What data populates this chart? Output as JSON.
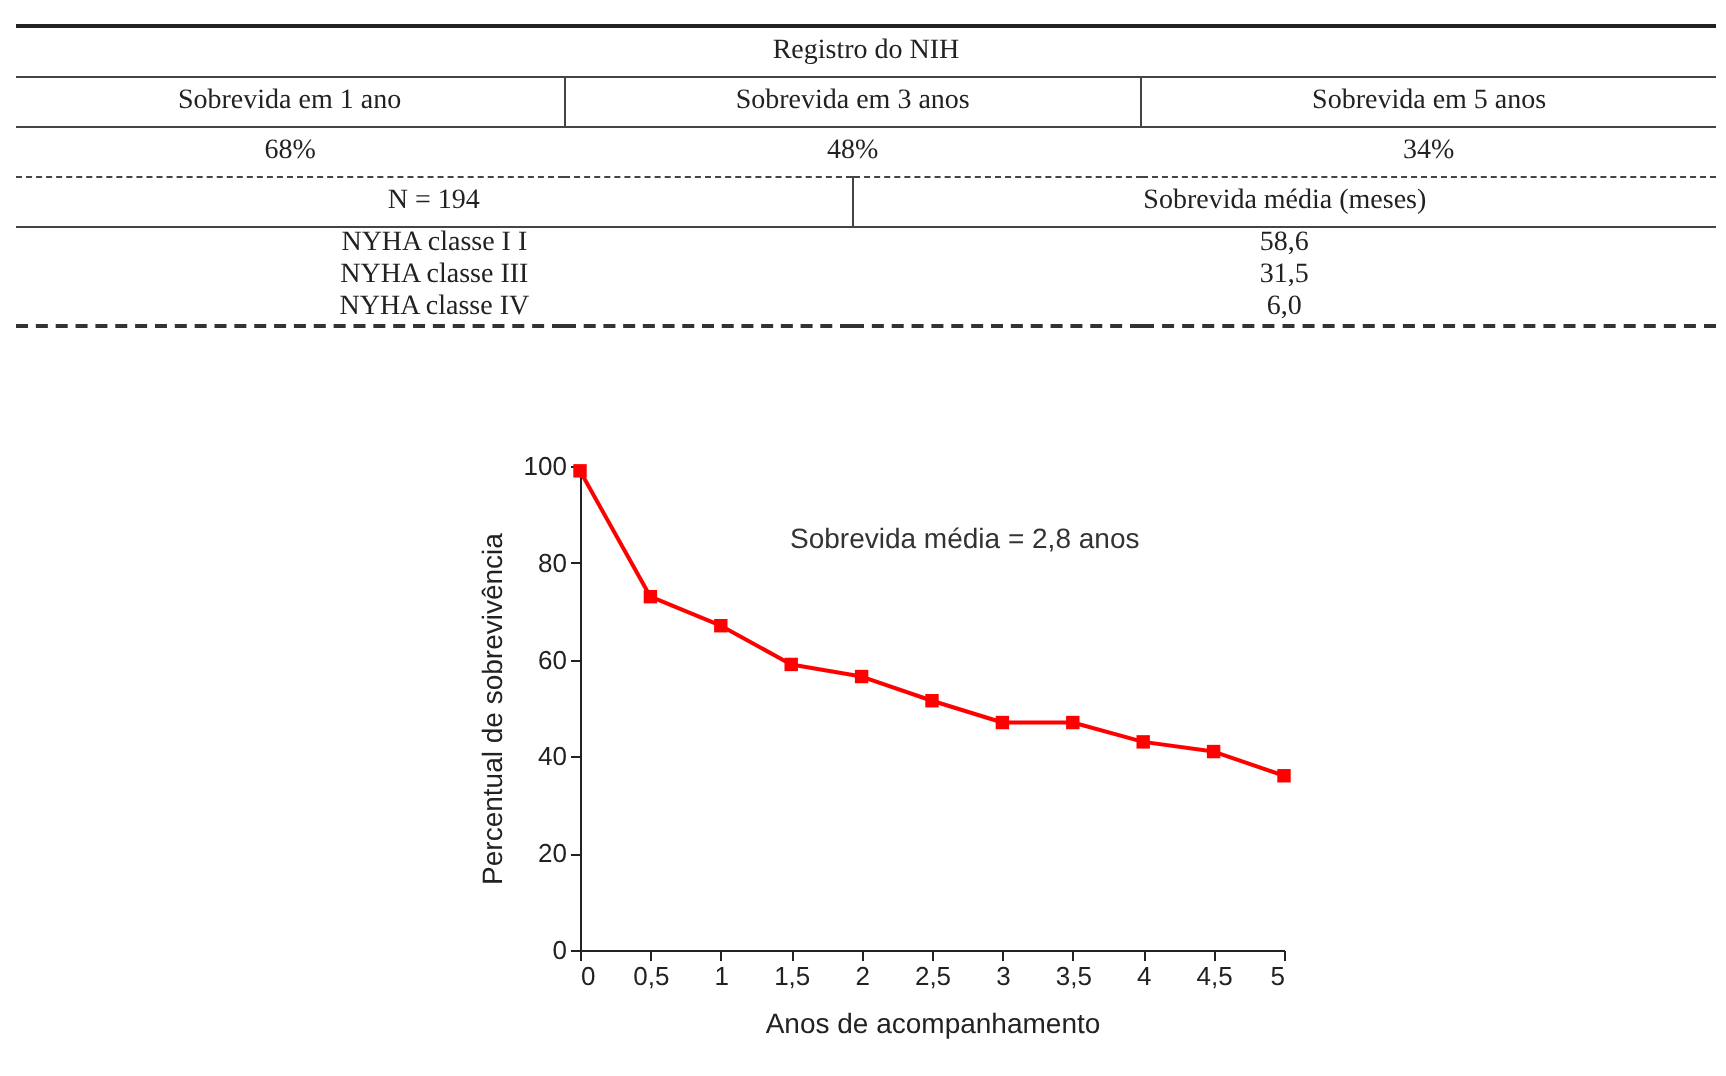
{
  "chart_data": [
    {
      "type": "other",
      "title": "Registro do NIH",
      "annotations": [
        "Sobrevida em 1 ano",
        "Sobrevida em 3 anos",
        "Sobrevida em 5 anos",
        "68%",
        "48%",
        "34%",
        "N = 194",
        "Sobrevida média (meses)",
        "NYHA classe I I",
        "58,6",
        "NYHA classe III",
        "31,5",
        "NYHA classe IV",
        "6,0"
      ]
    },
    {
      "type": "line",
      "xlabel": "Anos de acompanhamento",
      "ylabel": "Percentual de sobrevivência",
      "x": [
        0,
        0.5,
        1,
        1.5,
        2,
        2.5,
        3,
        3.5,
        4,
        4.5,
        5
      ],
      "series": [
        {
          "color": "#ff0000",
          "values": [
            99,
            73,
            67,
            59,
            56.5,
            51.5,
            47,
            47,
            43,
            41,
            36
          ]
        }
      ],
      "xlim": [
        0,
        5
      ],
      "xticks": [
        0,
        {
          "value": 0.5,
          "label": "0,5"
        },
        1,
        {
          "value": 1.5,
          "label": "1,5"
        },
        2,
        {
          "value": 2.5,
          "label": "2,5"
        },
        3,
        {
          "value": 3.5,
          "label": "3,5"
        },
        4,
        {
          "value": 4.5,
          "label": "4,5"
        },
        5
      ],
      "ylim": [
        0,
        100
      ],
      "yticks": [
        0,
        20,
        40,
        60,
        80,
        100
      ],
      "grid": false,
      "marker": "square",
      "line_style": "solid",
      "annotations": [
        "Sobrevida média = 2,8 anos"
      ]
    }
  ]
}
